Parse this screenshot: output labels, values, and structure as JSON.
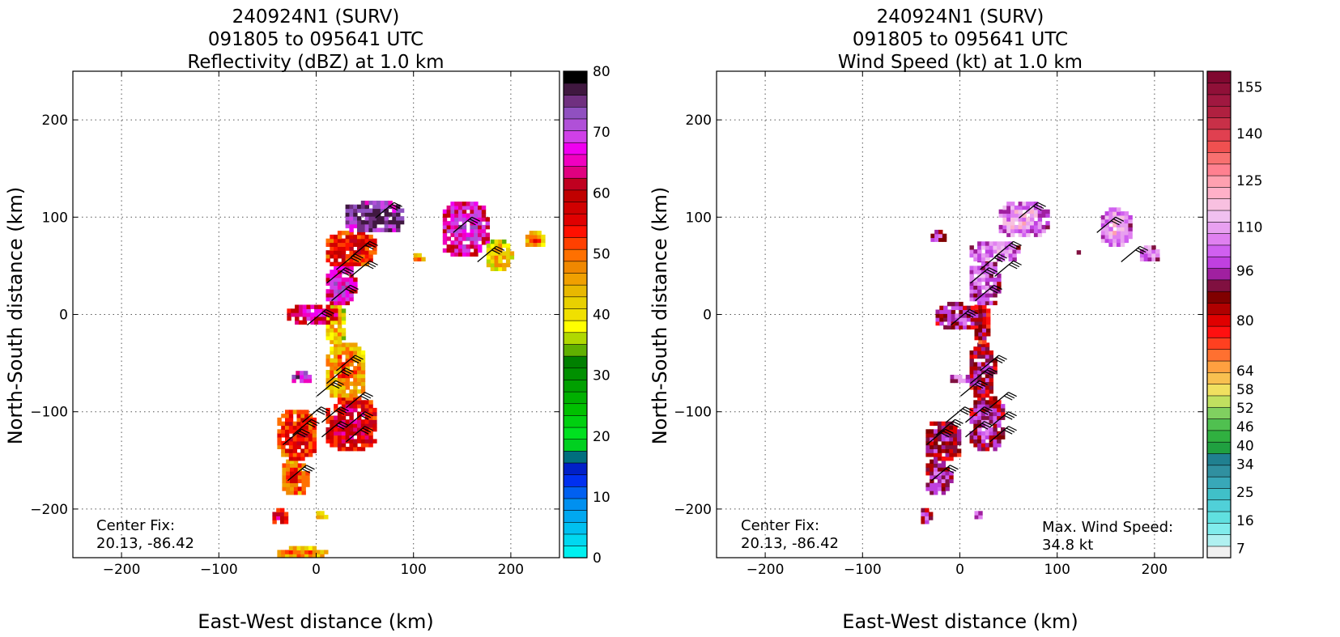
{
  "chart_data": [
    {
      "type": "heatmap",
      "title_lines": [
        "240924N1 (SURV)",
        "091805 to 095641 UTC",
        "Reflectivity (dBZ) at 1.0 km"
      ],
      "xlabel": "East-West distance (km)",
      "ylabel": "North-South distance (km)",
      "xlim": [
        -250,
        250
      ],
      "ylim": [
        -250,
        250
      ],
      "xticks": [
        -200,
        -100,
        0,
        100,
        200
      ],
      "yticks": [
        -200,
        -100,
        0,
        100,
        200
      ],
      "x_tick_labels": [
        "−200",
        "−100",
        "0",
        "100",
        "200"
      ],
      "y_tick_labels": [
        "−200",
        "−100",
        "0",
        "100",
        "200"
      ],
      "grid": true,
      "colorbar": {
        "min": 0,
        "max": 80,
        "ticks": [
          0,
          10,
          20,
          30,
          40,
          50,
          60,
          70,
          80
        ],
        "tick_labels": [
          "0",
          "10",
          "20",
          "30",
          "40",
          "50",
          "60",
          "70",
          "80"
        ],
        "colors": [
          "#00f0f0",
          "#00d8f0",
          "#00c0f0",
          "#00a8f0",
          "#0090f0",
          "#0060f0",
          "#0030f0",
          "#0020c8",
          "#006e7e",
          "#00d020",
          "#00e020",
          "#00d010",
          "#00c000",
          "#00b000",
          "#00a000",
          "#009000",
          "#008000",
          "#60b000",
          "#b0d800",
          "#ffff00",
          "#f0e000",
          "#e8d000",
          "#e8b800",
          "#f0a000",
          "#f08800",
          "#ff7000",
          "#ff4000",
          "#ff1000",
          "#e00000",
          "#d00000",
          "#c00000",
          "#c00020",
          "#e00080",
          "#f000c0",
          "#f000f0",
          "#d040e8",
          "#b050d8",
          "#9050c0",
          "#703080",
          "#401840",
          "#000000"
        ]
      },
      "annotations": [
        {
          "lines": [
            "Center Fix:",
            "20.13, -86.42"
          ]
        }
      ],
      "echo_regions": [
        {
          "x": [
            -40,
            10
          ],
          "y": [
            -250,
            -240
          ],
          "level": 22
        },
        {
          "x": [
            -45,
            -30
          ],
          "y": [
            -215,
            -200
          ],
          "level": 28
        },
        {
          "x": [
            0,
            10
          ],
          "y": [
            -210,
            -203
          ],
          "level": 22
        },
        {
          "x": [
            -35,
            -10
          ],
          "y": [
            -185,
            -150
          ],
          "level": 24
        },
        {
          "x": [
            -40,
            0
          ],
          "y": [
            -150,
            -100
          ],
          "level": 26
        },
        {
          "x": [
            10,
            60
          ],
          "y": [
            -140,
            -85
          ],
          "level": 28
        },
        {
          "x": [
            10,
            50
          ],
          "y": [
            -85,
            -30
          ],
          "level": 22
        },
        {
          "x": [
            -25,
            -5
          ],
          "y": [
            -70,
            -60
          ],
          "level": 34
        },
        {
          "x": [
            10,
            30
          ],
          "y": [
            -30,
            10
          ],
          "level": 20
        },
        {
          "x": [
            -30,
            20
          ],
          "y": [
            -10,
            10
          ],
          "level": 30
        },
        {
          "x": [
            10,
            40
          ],
          "y": [
            10,
            50
          ],
          "level": 32
        },
        {
          "x": [
            10,
            60
          ],
          "y": [
            50,
            85
          ],
          "level": 26
        },
        {
          "x": [
            30,
            90
          ],
          "y": [
            85,
            115
          ],
          "level": 36
        },
        {
          "x": [
            100,
            110
          ],
          "y": [
            55,
            63
          ],
          "level": 22
        },
        {
          "x": [
            130,
            175
          ],
          "y": [
            60,
            115
          ],
          "level": 32
        },
        {
          "x": [
            175,
            200
          ],
          "y": [
            45,
            75
          ],
          "level": 20
        },
        {
          "x": [
            215,
            235
          ],
          "y": [
            70,
            85
          ],
          "level": 22
        }
      ],
      "wind_barb_positions": [
        {
          "x": 80,
          "y": 115
        },
        {
          "x": 55,
          "y": 75
        },
        {
          "x": 40,
          "y": 62
        },
        {
          "x": 55,
          "y": 55
        },
        {
          "x": 30,
          "y": 48
        },
        {
          "x": 35,
          "y": 30
        },
        {
          "x": 10,
          "y": 5
        },
        {
          "x": 160,
          "y": 100
        },
        {
          "x": 185,
          "y": 70
        },
        {
          "x": 40,
          "y": -42
        },
        {
          "x": 30,
          "y": -55
        },
        {
          "x": 20,
          "y": -68
        },
        {
          "x": 50,
          "y": -80
        },
        {
          "x": 25,
          "y": -95
        },
        {
          "x": 50,
          "y": -100
        },
        {
          "x": 5,
          "y": -95
        },
        {
          "x": 50,
          "y": -115
        },
        {
          "x": 25,
          "y": -110
        },
        {
          "x": -5,
          "y": -108
        },
        {
          "x": -15,
          "y": -118
        },
        {
          "x": -10,
          "y": -155
        }
      ]
    },
    {
      "type": "heatmap",
      "title_lines": [
        "240924N1 (SURV)",
        "091805 to 095641 UTC",
        "Wind Speed (kt) at 1.0 km"
      ],
      "xlabel": "East-West distance (km)",
      "ylabel": "North-South distance (km)",
      "xlim": [
        -250,
        250
      ],
      "ylim": [
        -250,
        250
      ],
      "xticks": [
        -200,
        -100,
        0,
        100,
        200
      ],
      "yticks": [
        -200,
        -100,
        0,
        100,
        200
      ],
      "x_tick_labels": [
        "−200",
        "−100",
        "0",
        "100",
        "200"
      ],
      "y_tick_labels": [
        "−200",
        "−100",
        "0",
        "100",
        "200"
      ],
      "grid": true,
      "colorbar": {
        "min": 4,
        "max": 160,
        "ticks": [
          7,
          16,
          25,
          34,
          40,
          46,
          52,
          58,
          64,
          80,
          96,
          110,
          125,
          140,
          155
        ],
        "tick_labels": [
          "7",
          "16",
          "25",
          "34",
          "40",
          "46",
          "52",
          "58",
          "64",
          "80",
          "96",
          "110",
          "125",
          "140",
          "155"
        ],
        "colors": [
          "#f0f0f0",
          "#b0f0f0",
          "#80ecec",
          "#60e0e0",
          "#50d0d8",
          "#40c0c8",
          "#38a8b8",
          "#3090a0",
          "#208090",
          "#20a040",
          "#30b040",
          "#50c050",
          "#80d060",
          "#c0e060",
          "#f0e060",
          "#f8c050",
          "#ffa040",
          "#ff7030",
          "#ff4020",
          "#ff1010",
          "#e00000",
          "#b00000",
          "#800000",
          "#801040",
          "#a020a0",
          "#c040e0",
          "#d060f0",
          "#e080f0",
          "#e8a0f0",
          "#f0c0f0",
          "#f8c0e0",
          "#ffb0c8",
          "#ffa0b0",
          "#ff8090",
          "#f87070",
          "#f05050",
          "#e04050",
          "#c83048",
          "#b02040",
          "#a01840",
          "#901038",
          "#800830"
        ]
      },
      "annotations": [
        {
          "lines": [
            "Center Fix:",
            "20.13, -86.42"
          ]
        },
        {
          "lines": [
            "Max. Wind Speed:",
            "34.8 kt"
          ]
        }
      ],
      "echo_regions": [
        {
          "x": [
            -40,
            -30
          ],
          "y": [
            -215,
            -200
          ],
          "level": 22
        },
        {
          "x": [
            15,
            25
          ],
          "y": [
            -210,
            -203
          ],
          "level": 24
        },
        {
          "x": [
            -35,
            -10
          ],
          "y": [
            -185,
            -150
          ],
          "level": 22
        },
        {
          "x": [
            -35,
            0
          ],
          "y": [
            -150,
            -110
          ],
          "level": 21
        },
        {
          "x": [
            10,
            45
          ],
          "y": [
            -140,
            -85
          ],
          "level": 22
        },
        {
          "x": [
            10,
            35
          ],
          "y": [
            -85,
            -30
          ],
          "level": 21
        },
        {
          "x": [
            -10,
            10
          ],
          "y": [
            -70,
            -62
          ],
          "level": 24
        },
        {
          "x": [
            15,
            30
          ],
          "y": [
            -30,
            10
          ],
          "level": 20
        },
        {
          "x": [
            -25,
            20
          ],
          "y": [
            -15,
            10
          ],
          "level": 22
        },
        {
          "x": [
            10,
            40
          ],
          "y": [
            10,
            55
          ],
          "level": 24
        },
        {
          "x": [
            10,
            60
          ],
          "y": [
            55,
            75
          ],
          "level": 25
        },
        {
          "x": [
            40,
            90
          ],
          "y": [
            80,
            115
          ],
          "level": 26
        },
        {
          "x": [
            -30,
            -15
          ],
          "y": [
            75,
            85
          ],
          "level": 22
        },
        {
          "x": [
            145,
            175
          ],
          "y": [
            70,
            110
          ],
          "level": 26
        },
        {
          "x": [
            185,
            205
          ],
          "y": [
            55,
            70
          ],
          "level": 25
        },
        {
          "x": [
            120,
            125
          ],
          "y": [
            62,
            68
          ],
          "level": 18
        }
      ],
      "wind_barb_positions": [
        {
          "x": 80,
          "y": 115
        },
        {
          "x": 55,
          "y": 75
        },
        {
          "x": 40,
          "y": 62
        },
        {
          "x": 55,
          "y": 55
        },
        {
          "x": 30,
          "y": 48
        },
        {
          "x": 35,
          "y": 30
        },
        {
          "x": 10,
          "y": 5
        },
        {
          "x": 160,
          "y": 100
        },
        {
          "x": 185,
          "y": 70
        },
        {
          "x": 40,
          "y": -42
        },
        {
          "x": 30,
          "y": -55
        },
        {
          "x": 20,
          "y": -68
        },
        {
          "x": 50,
          "y": -80
        },
        {
          "x": 25,
          "y": -95
        },
        {
          "x": 50,
          "y": -100
        },
        {
          "x": 5,
          "y": -95
        },
        {
          "x": 50,
          "y": -115
        },
        {
          "x": 25,
          "y": -110
        },
        {
          "x": -5,
          "y": -108
        },
        {
          "x": -15,
          "y": -118
        },
        {
          "x": -10,
          "y": -155
        }
      ]
    }
  ]
}
